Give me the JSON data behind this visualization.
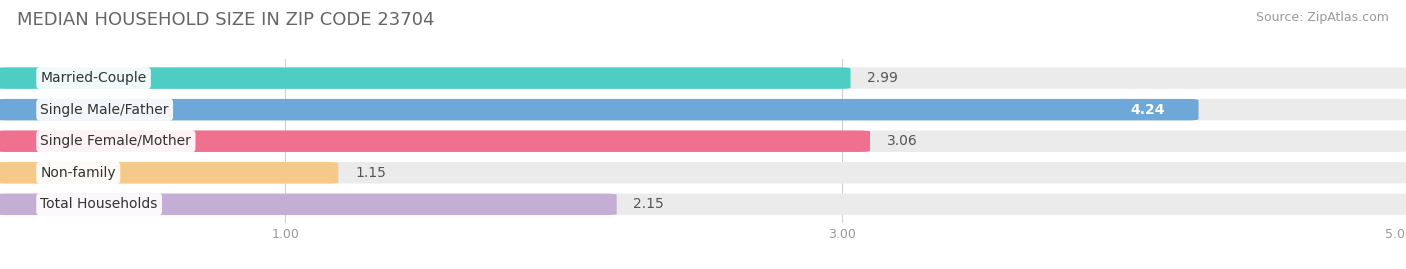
{
  "title": "MEDIAN HOUSEHOLD SIZE IN ZIP CODE 23704",
  "source": "Source: ZipAtlas.com",
  "categories": [
    "Married-Couple",
    "Single Male/Father",
    "Single Female/Mother",
    "Non-family",
    "Total Households"
  ],
  "values": [
    2.99,
    4.24,
    3.06,
    1.15,
    2.15
  ],
  "bar_colors": [
    "#4ecdc4",
    "#6ea8d8",
    "#f07090",
    "#f5c98a",
    "#c4aed4"
  ],
  "xlim_min": 0,
  "xlim_max": 5.0,
  "xticks": [
    1.0,
    3.0,
    5.0
  ],
  "xtick_labels": [
    "1.00",
    "3.00",
    "5.00"
  ],
  "background_color": "#ffffff",
  "bar_bg_color": "#ebebeb",
  "title_fontsize": 13,
  "source_fontsize": 9,
  "bar_label_fontsize": 10,
  "value_fontsize": 10,
  "tick_fontsize": 9,
  "value_inside_threshold": 4.0,
  "value_inside_color": "#ffffff",
  "value_outside_color": "#555555"
}
